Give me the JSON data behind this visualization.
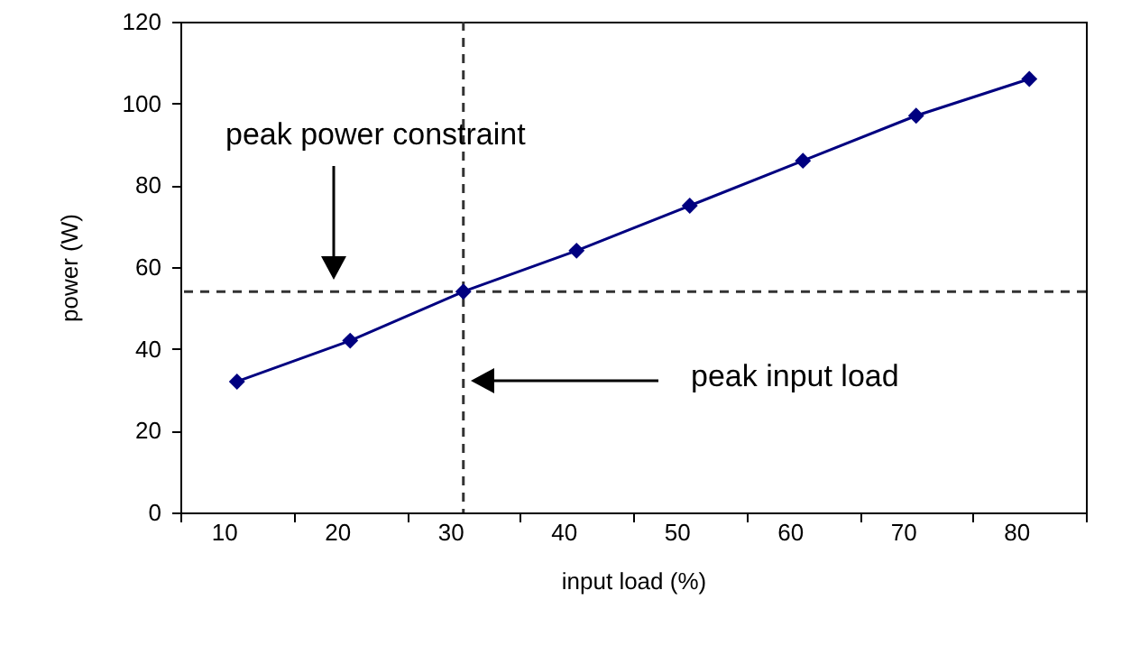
{
  "chart_data": {
    "type": "line",
    "xlabel": "input load (%)",
    "ylabel": "power (W)",
    "categories": [
      "10",
      "20",
      "30",
      "40",
      "50",
      "60",
      "70",
      "80"
    ],
    "series": [
      {
        "color": "#000080",
        "values": [
          32,
          42,
          54,
          64,
          75,
          86,
          97,
          106
        ]
      }
    ],
    "ylim": [
      0,
      120
    ],
    "yticks": [
      0,
      20,
      40,
      60,
      80,
      100,
      120
    ],
    "grid": false,
    "marker": "diamond",
    "line_style": "solid",
    "ref_lines": [
      {
        "axis": "x",
        "value": "30",
        "color": "#333333",
        "line_style": "dashed"
      },
      {
        "axis": "y",
        "value": 54,
        "color": "#333333",
        "line_style": "dashed"
      }
    ],
    "annotations": [
      "peak power constraint",
      "peak input load"
    ]
  }
}
